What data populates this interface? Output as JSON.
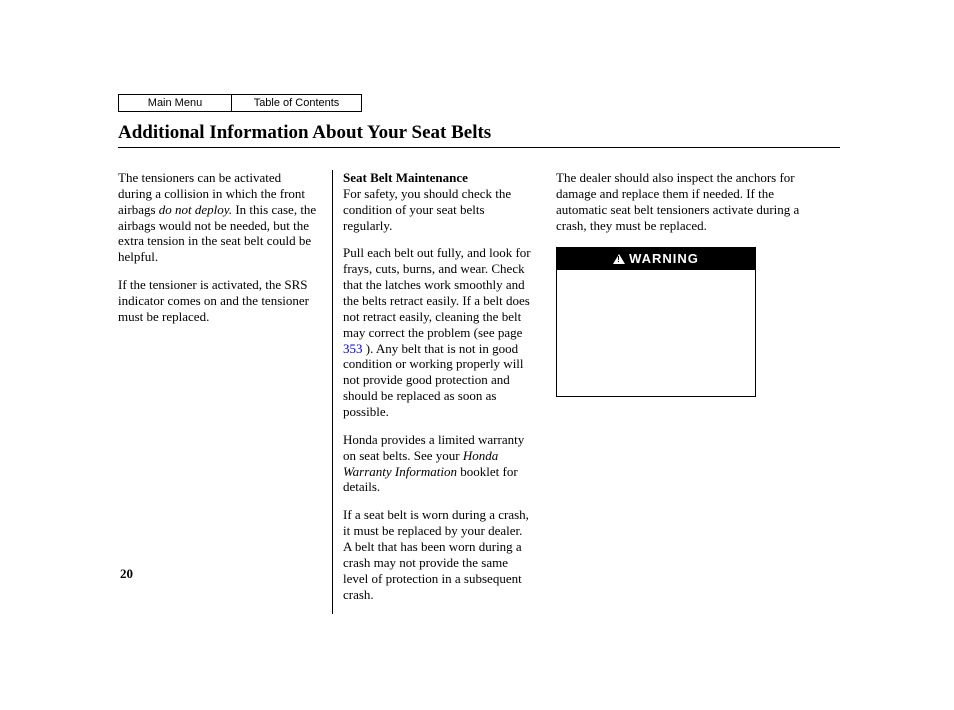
{
  "nav": {
    "main_menu": "Main Menu",
    "toc": "Table of Contents"
  },
  "title": "Additional Information About Your Seat Belts",
  "col1": {
    "p1a": "The tensioners can be activated during a collision in which the front airbags ",
    "p1_italic": "do not deploy.",
    "p1b": " In this case, the airbags would not be needed, but the extra tension in the seat belt could be helpful.",
    "p2": "If the tensioner is activated, the SRS indicator comes on and the tensioner must be replaced."
  },
  "col2": {
    "subhead": "Seat Belt Maintenance",
    "p1": "For safety, you should check the condition of your seat belts regularly.",
    "p2a": "Pull each belt out fully, and look for frays, cuts, burns, and wear. Check that the latches work smoothly and the belts retract easily. If a belt does not retract easily, cleaning the belt may correct the problem (see page ",
    "p2_link": "353",
    "p2b": " ). Any belt that is not in good condition or working properly will not provide good protection and should be replaced as soon as possible.",
    "p3a": "Honda provides a limited warranty on seat belts. See your ",
    "p3_italic": "Honda Warranty Information",
    "p3b": " booklet for details.",
    "p4": "If a seat belt is worn during a crash, it must be replaced by your dealer. A belt that has been worn during a crash may not provide the same level of protection in a subsequent crash."
  },
  "col3": {
    "p1": "The dealer should also inspect the anchors for damage and replace them if needed. If the automatic seat belt tensioners activate during a crash, they must be replaced.",
    "warning_label": "WARNING"
  },
  "page_number": "20"
}
